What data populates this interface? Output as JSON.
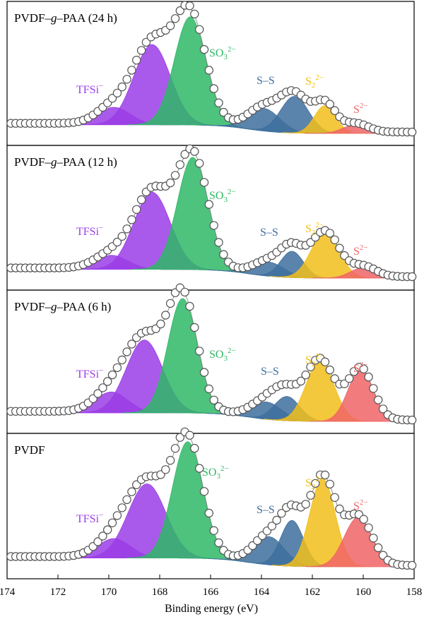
{
  "chart_data": [
    {
      "type": "area",
      "title_parts": [
        "PVDF–",
        "g",
        "–PAA (24 h)"
      ],
      "peaks": [
        {
          "key": "tfsi_a",
          "center": 169.8,
          "height": 0.1,
          "sigma": 0.65,
          "color": "#9b3de6"
        },
        {
          "key": "tfsi_b",
          "center": 168.3,
          "height": 0.46,
          "sigma": 0.72,
          "color": "#9b3de6"
        },
        {
          "key": "so3",
          "center": 166.8,
          "height": 0.62,
          "sigma": 0.62,
          "color": "#2fb866"
        },
        {
          "key": "ss_a",
          "center": 163.9,
          "height": 0.13,
          "sigma": 0.62,
          "color": "#3e6e9e"
        },
        {
          "key": "ss_b",
          "center": 162.7,
          "height": 0.21,
          "sigma": 0.55,
          "color": "#3e6e9e"
        },
        {
          "key": "s2",
          "center": 161.5,
          "height": 0.16,
          "sigma": 0.42,
          "color": "#f2be1a"
        },
        {
          "key": "s",
          "center": 160.3,
          "height": 0.05,
          "sigma": 0.5,
          "color": "#f06466"
        }
      ],
      "labels": {
        "tfsi": "TFSi",
        "tfsi_sup": "−",
        "so3": "SO",
        "so3_sub": "3",
        "so3_sup": "2−",
        "ss": "S–S",
        "s2": "S",
        "s2_sub": "2",
        "s2_sup": "2−",
        "s": "S",
        "s_sup": "2−"
      }
    },
    {
      "type": "area",
      "title_parts": [
        "PVDF–",
        "g",
        "–PAA (12 h)"
      ],
      "peaks": [
        {
          "key": "tfsi_a",
          "center": 169.9,
          "height": 0.08,
          "sigma": 0.65,
          "color": "#9b3de6"
        },
        {
          "key": "tfsi_b",
          "center": 168.3,
          "height": 0.44,
          "sigma": 0.72,
          "color": "#9b3de6"
        },
        {
          "key": "so3",
          "center": 166.7,
          "height": 0.64,
          "sigma": 0.6,
          "color": "#2fb866"
        },
        {
          "key": "ss_a",
          "center": 163.7,
          "height": 0.08,
          "sigma": 0.6,
          "color": "#3e6e9e"
        },
        {
          "key": "ss_b",
          "center": 162.8,
          "height": 0.15,
          "sigma": 0.45,
          "color": "#3e6e9e"
        },
        {
          "key": "s2",
          "center": 161.5,
          "height": 0.26,
          "sigma": 0.55,
          "color": "#f2be1a"
        },
        {
          "key": "s",
          "center": 160.0,
          "height": 0.06,
          "sigma": 0.5,
          "color": "#f06466"
        }
      ],
      "labels": {
        "tfsi": "TFSi",
        "tfsi_sup": "−",
        "so3": "SO",
        "so3_sub": "3",
        "so3_sup": "2−",
        "ss": "S–S",
        "s2": "S",
        "s2_sub": "2",
        "s2_sup": "2−",
        "s": "S",
        "s_sup": "2−"
      }
    },
    {
      "type": "area",
      "title_parts": [
        "PVDF–",
        "g",
        "–PAA (6 h)"
      ],
      "peaks": [
        {
          "key": "tfsi_a",
          "center": 169.9,
          "height": 0.12,
          "sigma": 0.65,
          "color": "#9b3de6"
        },
        {
          "key": "tfsi_b",
          "center": 168.6,
          "height": 0.42,
          "sigma": 0.72,
          "color": "#9b3de6"
        },
        {
          "key": "so3",
          "center": 167.1,
          "height": 0.66,
          "sigma": 0.58,
          "color": "#2fb866"
        },
        {
          "key": "ss_a",
          "center": 163.8,
          "height": 0.1,
          "sigma": 0.6,
          "color": "#3e6e9e"
        },
        {
          "key": "ss_b",
          "center": 163.0,
          "height": 0.14,
          "sigma": 0.5,
          "color": "#3e6e9e"
        },
        {
          "key": "s2",
          "center": 161.7,
          "height": 0.35,
          "sigma": 0.55,
          "color": "#f2be1a"
        },
        {
          "key": "s",
          "center": 160.1,
          "height": 0.3,
          "sigma": 0.5,
          "color": "#f06466"
        }
      ],
      "labels": {
        "tfsi": "TFSi",
        "tfsi_sup": "−",
        "so3": "SO",
        "so3_sub": "3",
        "so3_sup": "2−",
        "ss": "S–S",
        "s2": "S",
        "s2_sub": "2",
        "s2_sup": "2−",
        "s": "S",
        "s_sup": "2−"
      }
    },
    {
      "type": "area",
      "title_parts": [
        "PVDF",
        "",
        ""
      ],
      "peaks": [
        {
          "key": "tfsi_a",
          "center": 169.8,
          "height": 0.11,
          "sigma": 0.65,
          "color": "#9b3de6"
        },
        {
          "key": "tfsi_b",
          "center": 168.5,
          "height": 0.42,
          "sigma": 0.75,
          "color": "#9b3de6"
        },
        {
          "key": "so3",
          "center": 166.9,
          "height": 0.66,
          "sigma": 0.6,
          "color": "#2fb866"
        },
        {
          "key": "ss_a",
          "center": 163.7,
          "height": 0.16,
          "sigma": 0.6,
          "color": "#3e6e9e"
        },
        {
          "key": "ss_b",
          "center": 162.8,
          "height": 0.26,
          "sigma": 0.45,
          "color": "#3e6e9e"
        },
        {
          "key": "s2",
          "center": 161.6,
          "height": 0.5,
          "sigma": 0.5,
          "color": "#f2be1a"
        },
        {
          "key": "s",
          "center": 160.2,
          "height": 0.28,
          "sigma": 0.55,
          "color": "#f06466"
        }
      ],
      "labels": {
        "tfsi": "TFSi",
        "tfsi_sup": "−",
        "so3": "SO",
        "so3_sub": "3",
        "so3_sup": "2−",
        "ss": "S–S",
        "s2": "S",
        "s2_sub": "2",
        "s2_sup": "2−",
        "s": "S",
        "s_sup": "2−"
      }
    }
  ],
  "x_axis": {
    "label": "Binding energy (eV)",
    "range": [
      174,
      158
    ],
    "reversed": true,
    "ticks": [
      "174",
      "172",
      "170",
      "168",
      "166",
      "164",
      "162",
      "160",
      "158"
    ]
  },
  "style": {
    "marker_stroke": "#555555",
    "marker_fill": "#ffffff",
    "label_colors": {
      "tfsi": "#9b3de6",
      "so3": "#2fb866",
      "ss": "#3e6e9e",
      "s2": "#f2be1a",
      "s": "#f06466"
    }
  }
}
